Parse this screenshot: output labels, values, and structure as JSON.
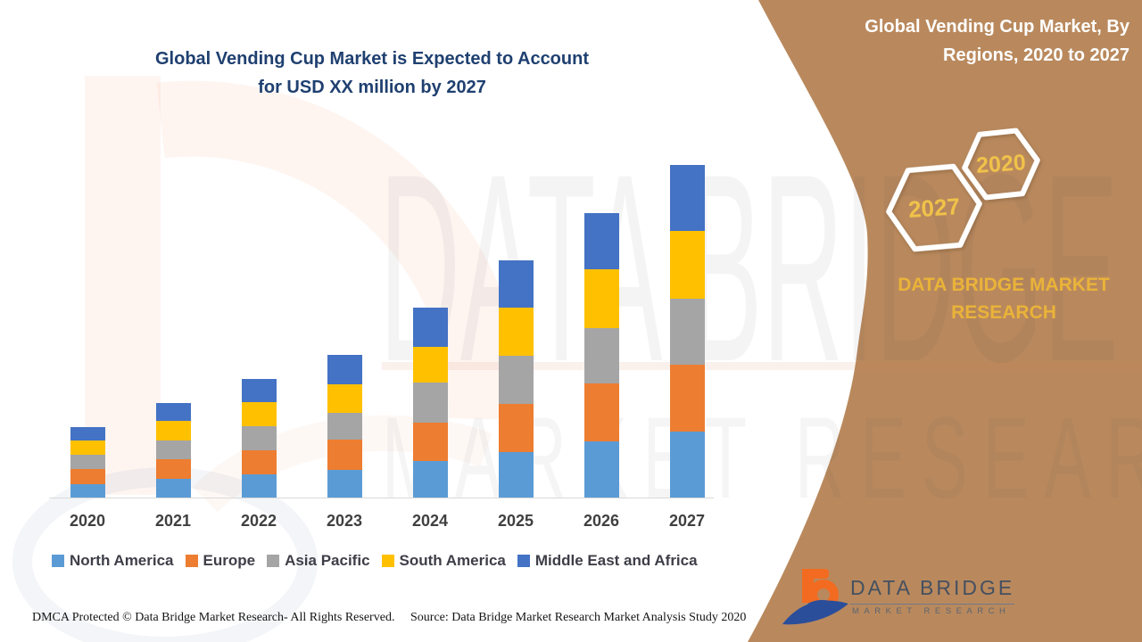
{
  "header": {
    "left_title_line1": "Global Vending Cup Market is Expected to Account",
    "left_title_line2": "for USD XX million by 2027",
    "right_title_line1": "Global Vending Cup Market, By",
    "right_title_line2": "Regions, 2020 to 2027"
  },
  "side_panel": {
    "panel_color": "#B9895D",
    "accent_gold": "#EAB339",
    "hexagons": [
      {
        "label": "2027"
      },
      {
        "label": "2020"
      }
    ],
    "brand_line1": "DATA BRIDGE MARKET",
    "brand_line2": "RESEARCH"
  },
  "chart_data": {
    "type": "bar",
    "stacked": true,
    "title": "Global Vending Cup Market, By Regions, 2020 to 2027",
    "categories": [
      "2020",
      "2021",
      "2022",
      "2023",
      "2024",
      "2025",
      "2026",
      "2027"
    ],
    "series": [
      {
        "name": "North America",
        "color": "#5B9BD5",
        "values": [
          15,
          21,
          26,
          31,
          41,
          51,
          63,
          74
        ]
      },
      {
        "name": "Europe",
        "color": "#ED7D31",
        "values": [
          17,
          22,
          27,
          34,
          43,
          54,
          65,
          75
        ]
      },
      {
        "name": "Asia Pacific",
        "color": "#A5A5A5",
        "values": [
          16,
          21,
          27,
          30,
          45,
          54,
          62,
          74
        ]
      },
      {
        "name": "South America",
        "color": "#FFC000",
        "values": [
          16,
          22,
          27,
          32,
          40,
          54,
          66,
          76
        ]
      },
      {
        "name": "Middle East and Africa",
        "color": "#4472C4",
        "values": [
          15,
          20,
          26,
          33,
          44,
          53,
          63,
          74
        ]
      }
    ],
    "xlabel": "",
    "ylabel": "",
    "units": "relative units (y-axis unlabeled, market sized as USD XX million)",
    "ylim": [
      0,
      389
    ],
    "gridlines": false,
    "y_axis_visible": false,
    "legend_position": "bottom"
  },
  "footer": {
    "dmca": "DMCA Protected © Data Bridge Market Research- All Rights Reserved.",
    "source": "Source: Data Bridge Market Research Market Analysis Study 2020"
  },
  "logo": {
    "name": "DATA BRIDGE",
    "subtitle": "MARKET RESEARCH"
  },
  "watermark": {
    "line1": "DATA BRIDGE",
    "line2": "MARKET RESEARCH"
  }
}
